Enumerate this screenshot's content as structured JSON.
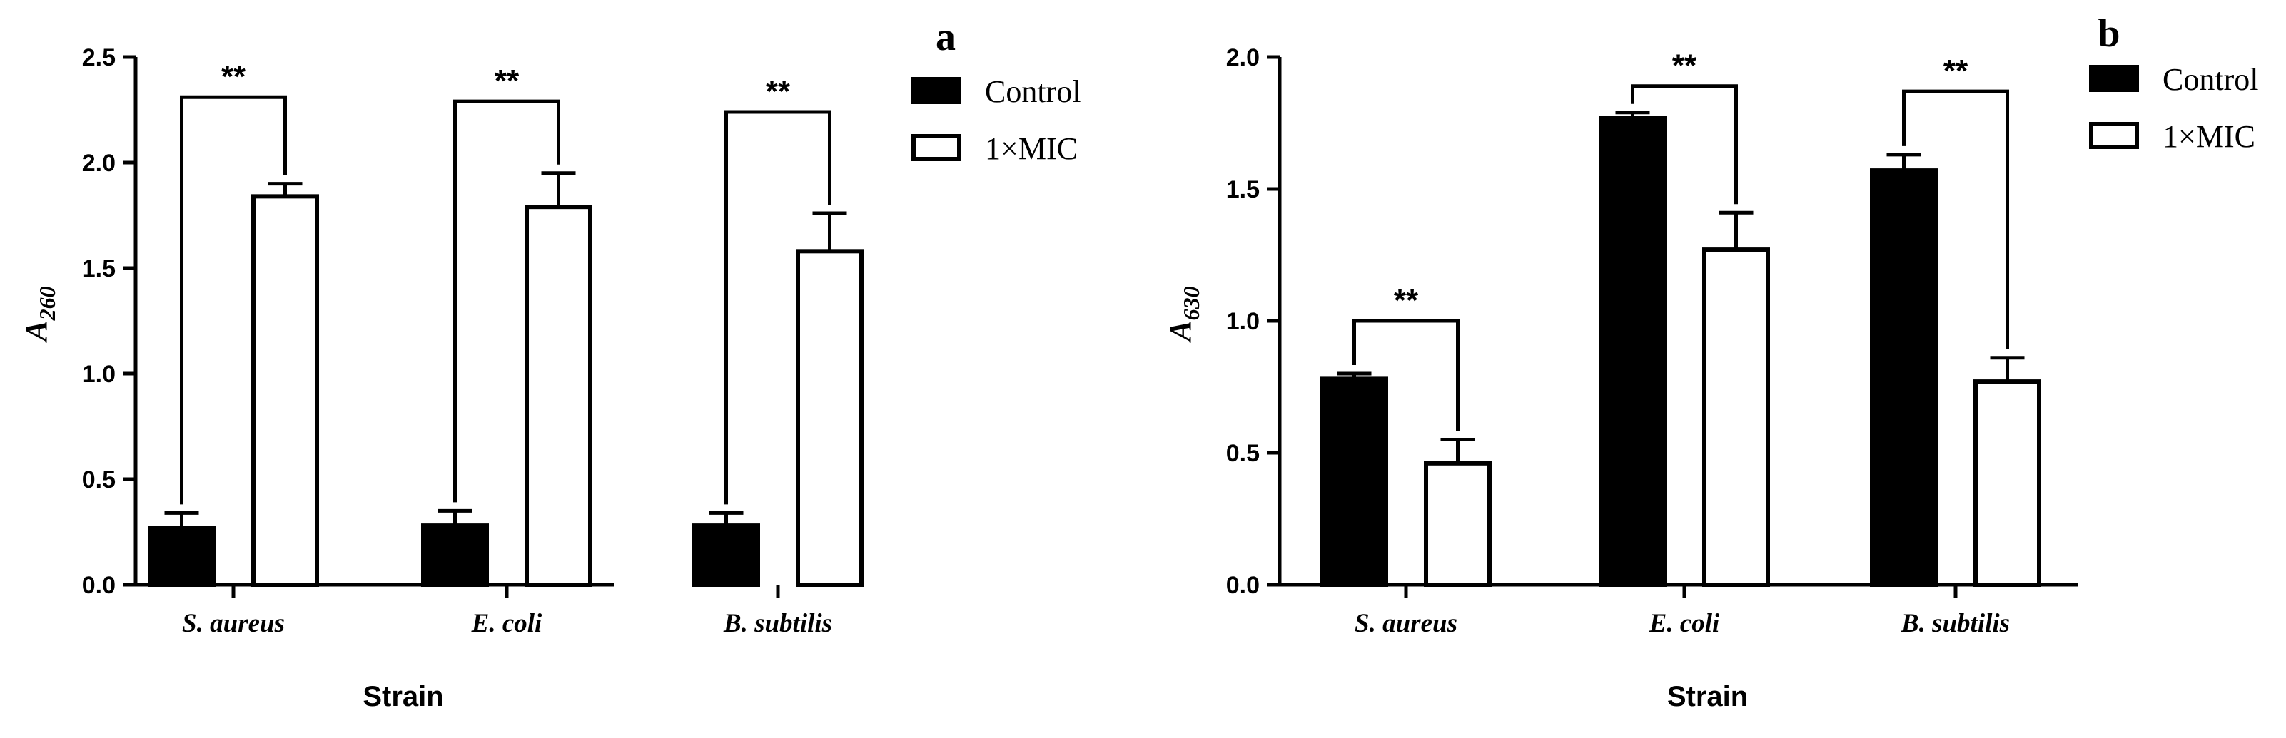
{
  "figure": {
    "panels": [
      {
        "letter": "a",
        "ylabel_main": "A",
        "ylabel_sub": "260"
      },
      {
        "letter": "b",
        "ylabel_main": "A",
        "ylabel_sub": "630"
      }
    ]
  },
  "chart_data": [
    {
      "type": "bar",
      "panel": "a",
      "title": "",
      "xlabel": "Strain",
      "ylabel": "A260",
      "categories": [
        "S. aureus",
        "E. coli",
        "B. subtilis"
      ],
      "ylim": [
        0,
        2.5
      ],
      "yticks": [
        0.0,
        0.5,
        1.0,
        1.5,
        2.0,
        2.5
      ],
      "ytick_labels": [
        "0.0",
        "0.5",
        "1.0",
        "1.5",
        "2.0",
        "2.5"
      ],
      "legend": "top-right",
      "grid": false,
      "series": [
        {
          "name": "Control",
          "fill": "#000000",
          "values": [
            0.27,
            0.28,
            0.28
          ],
          "errors": [
            0.07,
            0.07,
            0.06
          ]
        },
        {
          "name": "1×MIC",
          "fill": "#ffffff",
          "values": [
            1.84,
            1.79,
            1.58
          ],
          "errors": [
            0.06,
            0.16,
            0.18
          ]
        }
      ],
      "significance": [
        {
          "category": 0,
          "label": "**",
          "bracket_y": 2.31
        },
        {
          "category": 1,
          "label": "**",
          "bracket_y": 2.29
        },
        {
          "category": 2,
          "label": "**",
          "bracket_y": 2.24
        }
      ]
    },
    {
      "type": "bar",
      "panel": "b",
      "title": "",
      "xlabel": "Strain",
      "ylabel": "A630",
      "categories": [
        "S. aureus",
        "E. coli",
        "B. subtilis"
      ],
      "ylim": [
        0,
        2.0
      ],
      "yticks": [
        0.0,
        0.5,
        1.0,
        1.5,
        2.0
      ],
      "ytick_labels": [
        "0.0",
        "0.5",
        "1.0",
        "1.5",
        "2.0"
      ],
      "legend": "top-right",
      "grid": false,
      "series": [
        {
          "name": "Control",
          "fill": "#000000",
          "values": [
            0.78,
            1.77,
            1.57
          ],
          "errors": [
            0.02,
            0.02,
            0.06
          ]
        },
        {
          "name": "1×MIC",
          "fill": "#ffffff",
          "values": [
            0.46,
            1.27,
            0.77
          ],
          "errors": [
            0.09,
            0.14,
            0.09
          ]
        }
      ],
      "significance": [
        {
          "category": 0,
          "label": "**",
          "bracket_y": 1.0
        },
        {
          "category": 1,
          "label": "**",
          "bracket_y": 1.89
        },
        {
          "category": 2,
          "label": "**",
          "bracket_y": 1.87
        }
      ]
    }
  ]
}
